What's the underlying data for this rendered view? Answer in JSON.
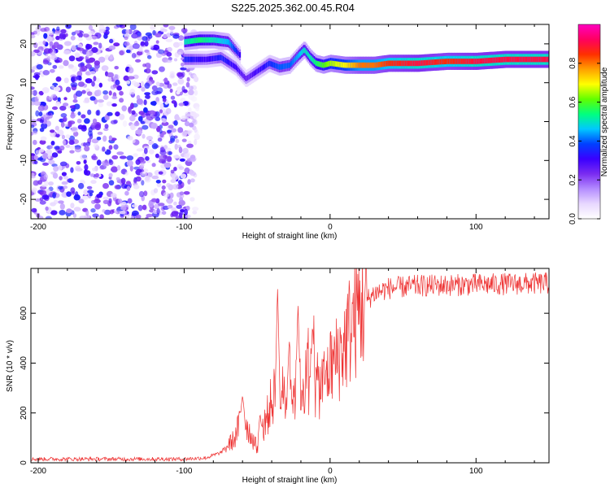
{
  "title": "S225.2025.362.00.45.R04",
  "chart_data": [
    {
      "type": "heatmap",
      "xlabel": "Height of straight line (km)",
      "ylabel": "Frequency (Hz)",
      "xlim": [
        -205,
        150
      ],
      "ylim": [
        -25,
        25
      ],
      "xticks": [
        -200,
        -100,
        0,
        100
      ],
      "yticks": [
        -20,
        -10,
        0,
        10,
        20
      ],
      "colorbar": {
        "label": "Normalized spectral amplitude",
        "range": [
          0,
          1
        ],
        "ticks": [
          0.0,
          0.2,
          0.4,
          0.6,
          0.8
        ],
        "tick_labels": [
          "0.0",
          "0.2",
          "0.4",
          "0.6",
          "0.8"
        ],
        "colormap": [
          "#ffffff",
          "#e8d8ff",
          "#b48cff",
          "#7a2cf0",
          "#3a00ff",
          "#0040ff",
          "#00c8ff",
          "#00ff80",
          "#60ff00",
          "#ffff00",
          "#ffa000",
          "#ff3000",
          "#ff0060",
          "#ff00c0"
        ]
      },
      "noise_region": {
        "x": [
          -205,
          -90
        ],
        "y": [
          -25,
          25
        ],
        "level": 0.15
      },
      "ridge": [
        {
          "x": -100,
          "y": 16,
          "a": 0.35
        },
        {
          "x": -85,
          "y": 16,
          "a": 0.3
        },
        {
          "x": -75,
          "y": 16.5,
          "a": 0.35
        },
        {
          "x": -65,
          "y": 14,
          "a": 0.3
        },
        {
          "x": -58,
          "y": 11,
          "a": 0.25
        },
        {
          "x": -50,
          "y": 13,
          "a": 0.3
        },
        {
          "x": -42,
          "y": 15,
          "a": 0.35
        },
        {
          "x": -35,
          "y": 14,
          "a": 0.4
        },
        {
          "x": -28,
          "y": 14.5,
          "a": 0.4
        },
        {
          "x": -22,
          "y": 17,
          "a": 0.45
        },
        {
          "x": -18,
          "y": 18.5,
          "a": 0.5
        },
        {
          "x": -14,
          "y": 16.5,
          "a": 0.5
        },
        {
          "x": -10,
          "y": 15,
          "a": 0.55
        },
        {
          "x": -5,
          "y": 14.5,
          "a": 0.6
        },
        {
          "x": 0,
          "y": 15,
          "a": 0.65
        },
        {
          "x": 10,
          "y": 14.5,
          "a": 0.7
        },
        {
          "x": 20,
          "y": 14.5,
          "a": 0.8
        },
        {
          "x": 30,
          "y": 14.5,
          "a": 0.8
        },
        {
          "x": 40,
          "y": 15,
          "a": 0.85
        },
        {
          "x": 60,
          "y": 15,
          "a": 0.9
        },
        {
          "x": 80,
          "y": 15.5,
          "a": 0.85
        },
        {
          "x": 100,
          "y": 15.5,
          "a": 0.9
        },
        {
          "x": 120,
          "y": 16,
          "a": 0.9
        },
        {
          "x": 150,
          "y": 16,
          "a": 0.9
        }
      ],
      "upper_branch": [
        {
          "x": -100,
          "y": 20.5,
          "a": 0.5
        },
        {
          "x": -90,
          "y": 21,
          "a": 0.55
        },
        {
          "x": -80,
          "y": 21,
          "a": 0.5
        },
        {
          "x": -70,
          "y": 20.5,
          "a": 0.45
        },
        {
          "x": -62,
          "y": 17,
          "a": 0.3
        }
      ]
    },
    {
      "type": "line",
      "xlabel": "Height of straight line (km)",
      "ylabel": "SNR (10 * v/v)",
      "xlim": [
        -205,
        150
      ],
      "ylim": [
        0,
        780
      ],
      "xticks": [
        -200,
        -100,
        0,
        100
      ],
      "yticks": [
        0,
        200,
        400,
        600
      ],
      "line_color": "#ee3333",
      "envelope": [
        {
          "x": -205,
          "y": 15
        },
        {
          "x": -100,
          "y": 15
        },
        {
          "x": -85,
          "y": 20
        },
        {
          "x": -75,
          "y": 40
        },
        {
          "x": -65,
          "y": 100
        },
        {
          "x": -60,
          "y": 200
        },
        {
          "x": -55,
          "y": 120
        },
        {
          "x": -50,
          "y": 60
        },
        {
          "x": -45,
          "y": 150
        },
        {
          "x": -40,
          "y": 250
        },
        {
          "x": -35,
          "y": 300
        },
        {
          "x": -30,
          "y": 250
        },
        {
          "x": -25,
          "y": 280
        },
        {
          "x": -20,
          "y": 300
        },
        {
          "x": -15,
          "y": 350
        },
        {
          "x": -10,
          "y": 300
        },
        {
          "x": -5,
          "y": 320
        },
        {
          "x": 0,
          "y": 380
        },
        {
          "x": 5,
          "y": 420
        },
        {
          "x": 10,
          "y": 480
        },
        {
          "x": 15,
          "y": 560
        },
        {
          "x": 20,
          "y": 620
        },
        {
          "x": 30,
          "y": 680
        },
        {
          "x": 40,
          "y": 700
        },
        {
          "x": 60,
          "y": 710
        },
        {
          "x": 100,
          "y": 715
        },
        {
          "x": 150,
          "y": 720
        }
      ],
      "peaks": [
        {
          "x": -60,
          "y": 270
        },
        {
          "x": -48,
          "y": 200
        },
        {
          "x": -36,
          "y": 710
        },
        {
          "x": -28,
          "y": 500
        },
        {
          "x": -22,
          "y": 640
        },
        {
          "x": -12,
          "y": 560
        }
      ]
    }
  ]
}
